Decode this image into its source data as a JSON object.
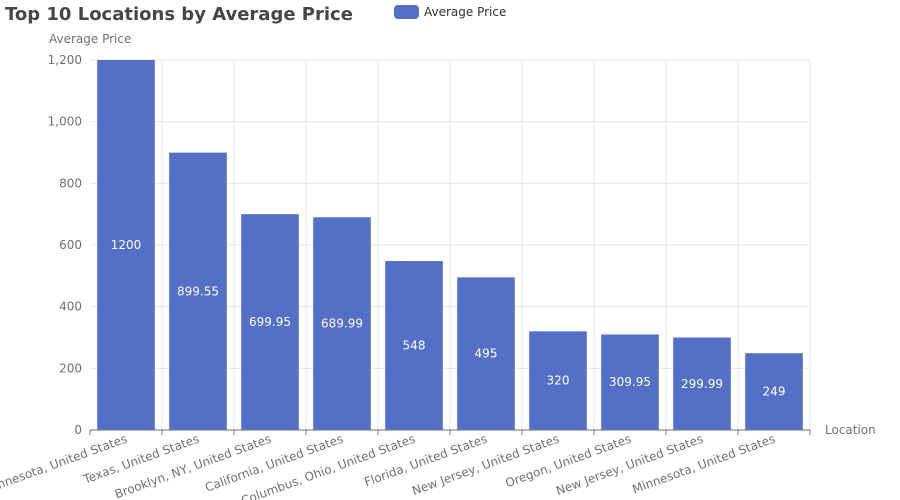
{
  "chart_data": {
    "type": "bar",
    "title": "Top 10 Locations by Average Price",
    "xlabel": "Location",
    "ylabel": "Average Price",
    "ylim": [
      0,
      1200
    ],
    "yticks": [
      0,
      200,
      400,
      600,
      800,
      1000,
      1200
    ],
    "ytick_labels": [
      "0",
      "200",
      "400",
      "600",
      "800",
      "1,000",
      "1,200"
    ],
    "legend": {
      "position": "top",
      "entries": [
        "Average Price"
      ]
    },
    "grid": true,
    "bar_color": "#5470c6",
    "categories": [
      "Minnesota, United States",
      "Texas, United States",
      "Brooklyn, NY, United States",
      "California, United States",
      "Columbus, Ohio, United States",
      "Florida, United States",
      "New Jersey, United States",
      "Oregon, United States",
      "New Jersey, United States",
      "Minnesota, United States"
    ],
    "series": [
      {
        "name": "Average Price",
        "values": [
          1200,
          899.55,
          699.95,
          689.99,
          548,
          495,
          320,
          309.95,
          299.99,
          249
        ],
        "labels": [
          "1200",
          "899.55",
          "699.95",
          "689.99",
          "548",
          "495",
          "320",
          "309.95",
          "299.99",
          "249"
        ]
      }
    ]
  }
}
